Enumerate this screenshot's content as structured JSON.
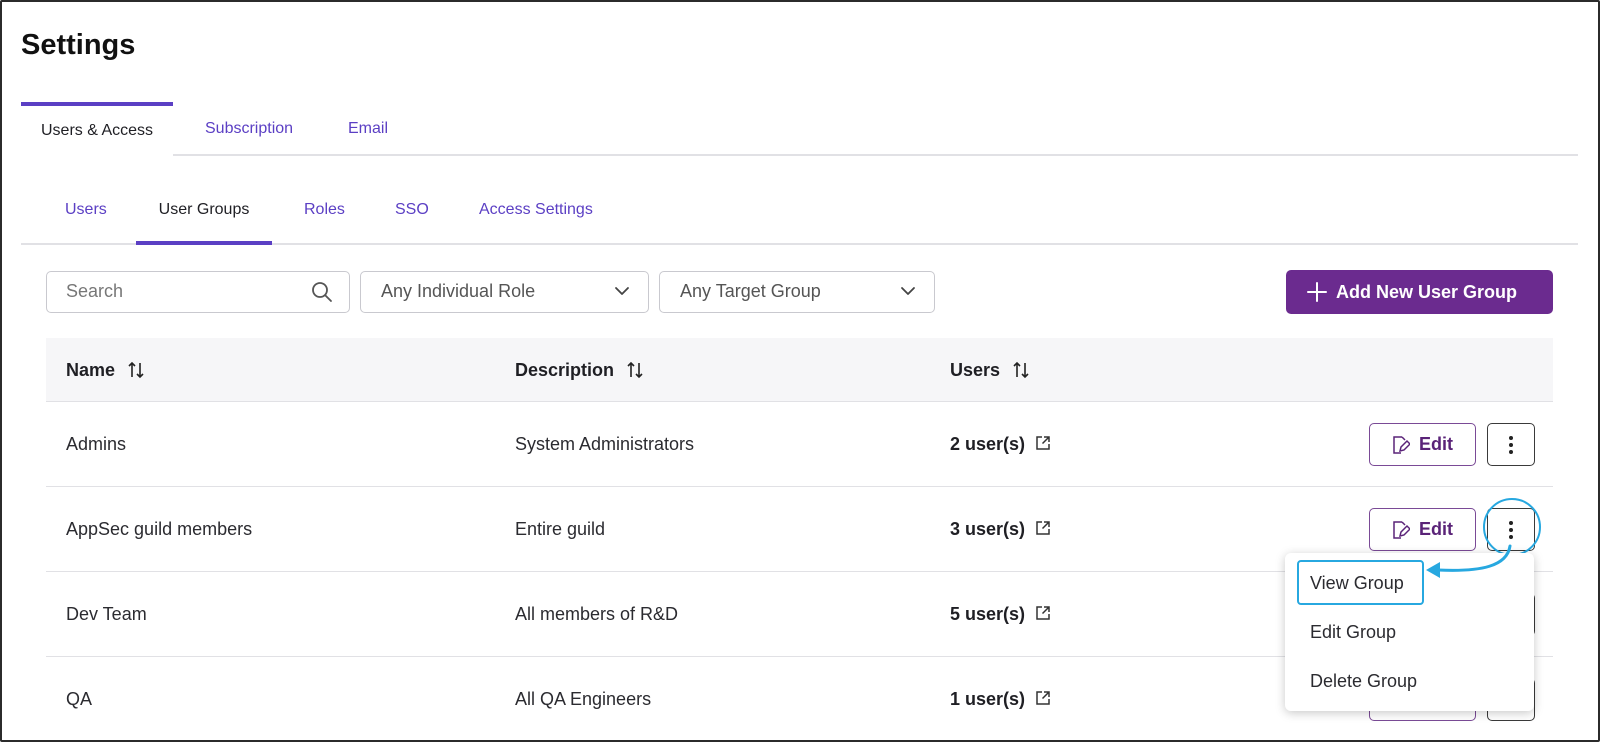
{
  "page": {
    "title": "Settings"
  },
  "top_tabs": [
    {
      "label": "Users & Access",
      "active": true
    },
    {
      "label": "Subscription",
      "active": false
    },
    {
      "label": "Email",
      "active": false
    }
  ],
  "sub_tabs": [
    {
      "label": "Users",
      "active": false
    },
    {
      "label": "User Groups",
      "active": true
    },
    {
      "label": "Roles",
      "active": false
    },
    {
      "label": "SSO",
      "active": false
    },
    {
      "label": "Access Settings",
      "active": false
    }
  ],
  "filters": {
    "search_placeholder": "Search",
    "role_select": "Any Individual Role",
    "target_group_select": "Any Target Group"
  },
  "add_button_label": "Add New User Group",
  "table": {
    "columns": [
      "Name",
      "Description",
      "Users"
    ],
    "rows": [
      {
        "name": "Admins",
        "description": "System Administrators",
        "users": "2 user(s)"
      },
      {
        "name": "AppSec guild members",
        "description": "Entire guild",
        "users": "3 user(s)"
      },
      {
        "name": "Dev Team",
        "description": "All members of R&D",
        "users": "5 user(s)"
      },
      {
        "name": "QA",
        "description": "All QA Engineers",
        "users": "1 user(s)"
      }
    ],
    "edit_label": "Edit"
  },
  "row_menu": {
    "items": [
      "View Group",
      "Edit Group",
      "Delete Group"
    ]
  },
  "colors": {
    "accent": "#5b3fc4",
    "primary_button": "#6b2b8f",
    "annotation": "#27a8e0"
  }
}
